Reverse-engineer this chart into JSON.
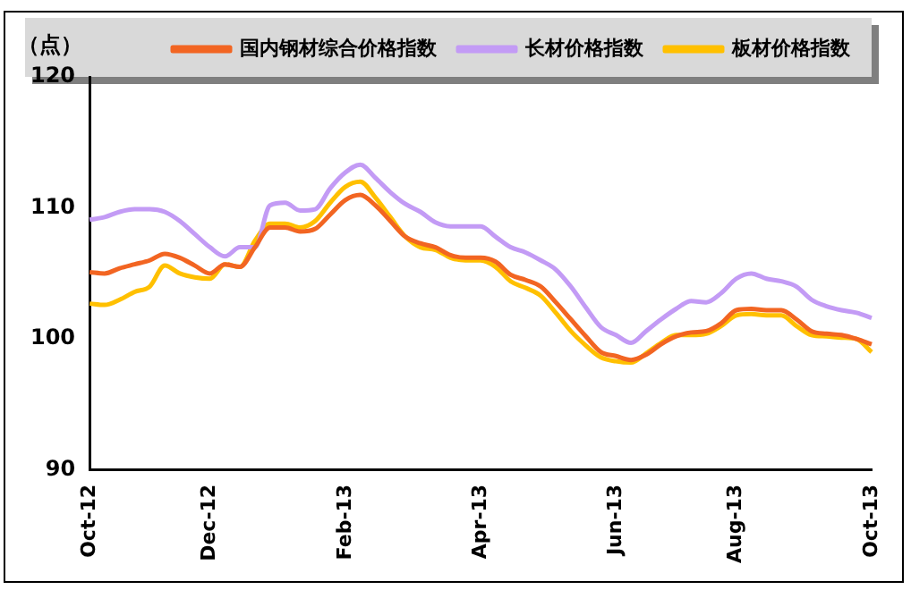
{
  "chart_data": {
    "type": "line",
    "ylabel": "（点）",
    "categories": [
      "Oct-12",
      null,
      null,
      null,
      null,
      null,
      null,
      null,
      "Dec-12",
      null,
      null,
      null,
      null,
      null,
      null,
      null,
      null,
      "Feb-13",
      null,
      null,
      null,
      null,
      null,
      null,
      null,
      null,
      "Apr-13",
      null,
      null,
      null,
      null,
      null,
      null,
      null,
      null,
      "Jun-13",
      null,
      null,
      null,
      null,
      null,
      null,
      null,
      "Aug-13",
      null,
      null,
      null,
      null,
      null,
      null,
      null,
      null,
      "Oct-13"
    ],
    "series": [
      {
        "name": "国内钢材综合价格指数",
        "color": "#f26522",
        "values": [
          105.1,
          105.0,
          105.4,
          105.7,
          106.0,
          106.5,
          106.2,
          105.6,
          105.0,
          105.7,
          105.5,
          107.0,
          108.5,
          108.5,
          108.2,
          108.4,
          109.5,
          110.6,
          111.0,
          110.2,
          109.0,
          107.8,
          107.3,
          107.0,
          106.4,
          106.2,
          106.2,
          105.9,
          104.9,
          104.5,
          104.0,
          102.8,
          101.5,
          100.2,
          99.0,
          98.7,
          98.4,
          98.8,
          99.6,
          100.2,
          100.5,
          100.6,
          101.2,
          102.2,
          102.3,
          102.2,
          102.2,
          101.5,
          100.6,
          100.4,
          100.3,
          100.0,
          99.6
        ]
      },
      {
        "name": "长材价格指数",
        "color": "#c39bf5",
        "values": [
          109.1,
          109.3,
          109.7,
          109.9,
          109.9,
          109.7,
          109.0,
          108.0,
          107.0,
          106.3,
          107.0,
          107.0,
          110.2,
          110.4,
          109.8,
          109.9,
          111.5,
          112.7,
          113.3,
          112.3,
          111.2,
          110.3,
          109.7,
          108.9,
          108.6,
          108.6,
          108.6,
          107.8,
          107.0,
          106.6,
          106.0,
          105.3,
          104.0,
          102.4,
          100.9,
          100.3,
          99.7,
          100.6,
          101.5,
          102.3,
          102.9,
          102.8,
          103.5,
          104.6,
          105.0,
          104.6,
          104.4,
          104.0,
          103.0,
          102.5,
          102.2,
          102.0,
          101.6
        ]
      },
      {
        "name": "板材价格指数",
        "color": "#ffc000",
        "values": [
          102.7,
          102.6,
          103.0,
          103.6,
          104.0,
          105.6,
          105.0,
          104.7,
          104.6,
          105.7,
          105.5,
          107.5,
          108.8,
          108.8,
          108.5,
          109.0,
          110.4,
          111.6,
          112.0,
          110.8,
          109.3,
          107.8,
          107.0,
          106.8,
          106.2,
          106.0,
          106.0,
          105.5,
          104.4,
          103.9,
          103.3,
          102.0,
          100.6,
          99.5,
          98.6,
          98.3,
          98.2,
          98.9,
          99.7,
          100.3,
          100.3,
          100.4,
          101.0,
          101.8,
          101.9,
          101.8,
          101.8,
          101.0,
          100.3,
          100.2,
          100.1,
          100.0,
          99.0
        ]
      }
    ],
    "ylim": [
      90,
      120
    ],
    "yticks": [
      90,
      100,
      110,
      120
    ],
    "grid": false,
    "legend": "top right",
    "marker": "none",
    "line_style": "solid"
  }
}
